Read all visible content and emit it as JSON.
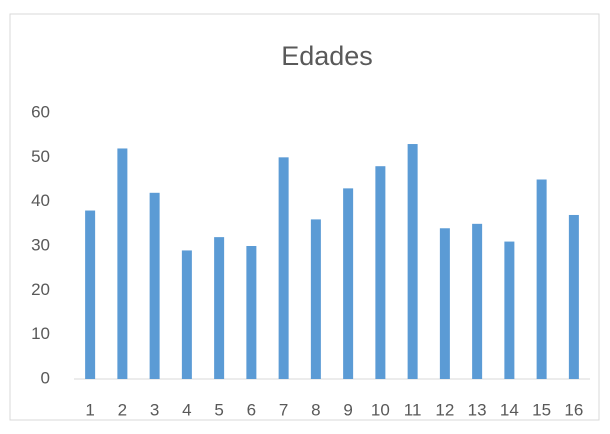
{
  "chart_data": {
    "type": "bar",
    "title": "Edades",
    "categories": [
      "1",
      "2",
      "3",
      "4",
      "5",
      "6",
      "7",
      "8",
      "9",
      "10",
      "11",
      "12",
      "13",
      "14",
      "15",
      "16"
    ],
    "values": [
      38,
      52,
      42,
      29,
      32,
      30,
      50,
      36,
      43,
      48,
      53,
      34,
      35,
      31,
      45,
      37
    ],
    "color": "#5b9bd5",
    "ylim": [
      0,
      60
    ],
    "yticks": [
      0,
      10,
      20,
      30,
      40,
      50,
      60
    ],
    "grid": false
  }
}
